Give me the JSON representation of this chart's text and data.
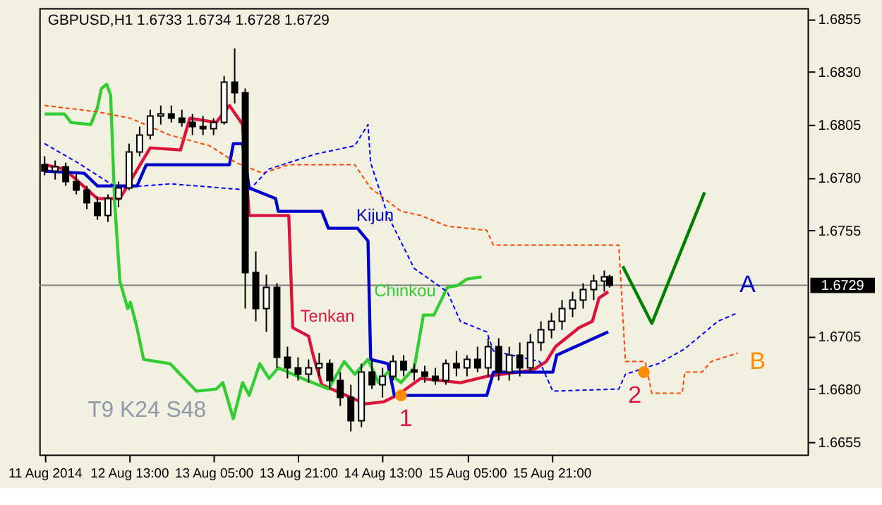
{
  "chart_data": {
    "type": "candlestick",
    "title": "GBPUSD,H1 1.6733 1.6734 1.6728 1.6729",
    "x": [
      "2014-08-11T21:00",
      "2014-08-11T23:00",
      "2014-08-12T01:00",
      "2014-08-12T03:00",
      "2014-08-12T05:00",
      "2014-08-12T07:00",
      "2014-08-12T09:00",
      "2014-08-12T11:00",
      "2014-08-12T13:00",
      "2014-08-12T15:00",
      "2014-08-12T17:00",
      "2014-08-12T19:00",
      "2014-08-12T21:00",
      "2014-08-12T23:00",
      "2014-08-13T01:00",
      "2014-08-13T03:00",
      "2014-08-13T05:00",
      "2014-08-13T07:00",
      "2014-08-13T09:00",
      "2014-08-13T11:00",
      "2014-08-13T13:00",
      "2014-08-13T15:00",
      "2014-08-13T17:00",
      "2014-08-13T19:00",
      "2014-08-13T21:00",
      "2014-08-13T23:00",
      "2014-08-14T01:00",
      "2014-08-14T03:00",
      "2014-08-14T05:00",
      "2014-08-14T07:00",
      "2014-08-14T09:00",
      "2014-08-14T11:00",
      "2014-08-14T13:00",
      "2014-08-14T15:00",
      "2014-08-14T17:00",
      "2014-08-14T19:00",
      "2014-08-14T21:00",
      "2014-08-14T23:00",
      "2014-08-15T01:00",
      "2014-08-15T03:00",
      "2014-08-15T05:00",
      "2014-08-15T07:00",
      "2014-08-15T09:00",
      "2014-08-15T11:00",
      "2014-08-15T13:00",
      "2014-08-15T15:00",
      "2014-08-15T17:00",
      "2014-08-15T19:00",
      "2014-08-15T21:00",
      "2014-08-15T23:00",
      "2014-08-16T01:00",
      "2014-08-16T03:00",
      "2014-08-16T05:00",
      "2014-08-16T07:00",
      "2014-08-16T08:00"
    ],
    "ohlc": [
      [
        1.6786,
        1.679,
        1.6781,
        1.6783
      ],
      [
        1.6783,
        1.6788,
        1.6779,
        1.6785
      ],
      [
        1.6785,
        1.6787,
        1.6776,
        1.6778
      ],
      [
        1.6778,
        1.6782,
        1.6772,
        1.6774
      ],
      [
        1.6774,
        1.6776,
        1.6765,
        1.6768
      ],
      [
        1.6768,
        1.6771,
        1.676,
        1.6762
      ],
      [
        1.6762,
        1.6772,
        1.6759,
        1.677
      ],
      [
        1.677,
        1.6778,
        1.6766,
        1.6775
      ],
      [
        1.6775,
        1.6796,
        1.6774,
        1.6792
      ],
      [
        1.6792,
        1.6804,
        1.679,
        1.68
      ],
      [
        1.68,
        1.6812,
        1.6798,
        1.6809
      ],
      [
        1.6809,
        1.6814,
        1.6805,
        1.681
      ],
      [
        1.681,
        1.6814,
        1.6806,
        1.6808
      ],
      [
        1.6808,
        1.6812,
        1.6804,
        1.6806
      ],
      [
        1.6806,
        1.681,
        1.68,
        1.6804
      ],
      [
        1.6804,
        1.6809,
        1.68,
        1.6803
      ],
      [
        1.6803,
        1.6808,
        1.68,
        1.6806
      ],
      [
        1.6806,
        1.6828,
        1.6805,
        1.6825
      ],
      [
        1.6825,
        1.6841,
        1.6815,
        1.682
      ],
      [
        1.682,
        1.6822,
        1.6718,
        1.6735
      ],
      [
        1.6735,
        1.6745,
        1.6712,
        1.6718
      ],
      [
        1.6718,
        1.6734,
        1.6707,
        1.6728
      ],
      [
        1.6728,
        1.673,
        1.669,
        1.6695
      ],
      [
        1.6695,
        1.67,
        1.6685,
        1.669
      ],
      [
        1.669,
        1.6695,
        1.6684,
        1.6687
      ],
      [
        1.6687,
        1.6694,
        1.6683,
        1.669
      ],
      [
        1.669,
        1.6697,
        1.6686,
        1.6692
      ],
      [
        1.6692,
        1.6694,
        1.668,
        1.6684
      ],
      [
        1.6684,
        1.6688,
        1.6672,
        1.6676
      ],
      [
        1.6676,
        1.6682,
        1.666,
        1.6665
      ],
      [
        1.6665,
        1.6692,
        1.6662,
        1.6688
      ],
      [
        1.6688,
        1.6694,
        1.668,
        1.6682
      ],
      [
        1.6682,
        1.669,
        1.6676,
        1.6686
      ],
      [
        1.6686,
        1.6696,
        1.6684,
        1.6693
      ],
      [
        1.6693,
        1.6696,
        1.6686,
        1.6689
      ],
      [
        1.6689,
        1.6692,
        1.6684,
        1.6688
      ],
      [
        1.6688,
        1.6691,
        1.6683,
        1.6686
      ],
      [
        1.6686,
        1.669,
        1.6682,
        1.6684
      ],
      [
        1.6684,
        1.6694,
        1.6682,
        1.6692
      ],
      [
        1.6692,
        1.6698,
        1.6686,
        1.669
      ],
      [
        1.669,
        1.6696,
        1.6686,
        1.6694
      ],
      [
        1.6694,
        1.67,
        1.6688,
        1.669
      ],
      [
        1.669,
        1.6704,
        1.6686,
        1.67
      ],
      [
        1.67,
        1.6704,
        1.6684,
        1.6688
      ],
      [
        1.6688,
        1.67,
        1.6684,
        1.6696
      ],
      [
        1.6696,
        1.6702,
        1.6686,
        1.669
      ],
      [
        1.669,
        1.6706,
        1.6688,
        1.6702
      ],
      [
        1.6702,
        1.6712,
        1.6698,
        1.6708
      ],
      [
        1.6708,
        1.6716,
        1.6704,
        1.6712
      ],
      [
        1.6712,
        1.6722,
        1.6708,
        1.6718
      ],
      [
        1.6718,
        1.6726,
        1.6714,
        1.6722
      ],
      [
        1.6722,
        1.673,
        1.6718,
        1.6727
      ],
      [
        1.6727,
        1.6734,
        1.6722,
        1.6731
      ],
      [
        1.6731,
        1.6736,
        1.6726,
        1.6733
      ],
      [
        1.6733,
        1.6734,
        1.6728,
        1.6729
      ]
    ],
    "series": [
      {
        "type": "line",
        "color": "#dc143c",
        "line_style": "solid",
        "x": [
          "2014-08-11T21:00",
          "2014-08-12T00:45",
          "2014-08-12T07:00",
          "2014-08-12T11:15",
          "2014-08-12T17:00",
          "2014-08-12T22:45",
          "2014-08-13T00:30",
          "2014-08-13T05:30",
          "2014-08-13T08:00",
          "2014-08-13T10:30",
          "2014-08-13T11:45",
          "2014-08-13T19:15",
          "2014-08-13T20:00",
          "2014-08-13T23:00",
          "2014-08-13T23:45",
          "2014-08-14T01:30",
          "2014-08-14T09:45",
          "2014-08-14T13:15",
          "2014-08-14T15:45",
          "2014-08-14T20:15",
          "2014-08-15T03:45",
          "2014-08-15T08:45",
          "2014-08-15T17:30",
          "2014-08-15T20:00",
          "2014-08-15T21:45",
          "2014-08-16T02:15",
          "2014-08-16T04:45",
          "2014-08-16T06:00",
          "2014-08-16T07:45"
        ],
        "values": [
          1.6786,
          1.6784,
          1.677,
          1.677,
          1.6794,
          1.6793,
          1.6808,
          1.6806,
          1.6814,
          1.6805,
          1.6762,
          1.6762,
          1.6709,
          1.6705,
          1.6697,
          1.6682,
          1.6673,
          1.6674,
          1.6677,
          1.6685,
          1.6683,
          1.6686,
          1.6689,
          1.6693,
          1.67,
          1.6709,
          1.6712,
          1.6723,
          1.6726
        ]
      },
      {
        "type": "line",
        "color": "#0000cd",
        "line_style": "solid",
        "x": [
          "2014-08-11T21:00",
          "2014-08-12T04:30",
          "2014-08-12T07:00",
          "2014-08-12T14:30",
          "2014-08-12T16:15",
          "2014-08-13T08:00",
          "2014-08-13T08:45",
          "2014-08-13T10:30",
          "2014-08-13T11:45",
          "2014-08-13T16:45",
          "2014-08-13T17:15",
          "2014-08-14T01:30",
          "2014-08-14T02:45",
          "2014-08-14T08:15",
          "2014-08-14T10:15",
          "2014-08-14T10:45",
          "2014-08-14T14:00",
          "2014-08-14T15:15",
          "2014-08-15T08:45",
          "2014-08-15T10:00",
          "2014-08-15T21:15",
          "2014-08-15T22:00",
          "2014-08-15T23:45",
          "2014-08-16T07:45"
        ],
        "values": [
          1.6783,
          1.6782,
          1.6776,
          1.6776,
          1.6786,
          1.6786,
          1.6796,
          1.6796,
          1.6775,
          1.677,
          1.6764,
          1.6764,
          1.6756,
          1.6756,
          1.675,
          1.6694,
          1.6692,
          1.6677,
          1.6677,
          1.6688,
          1.6688,
          1.6696,
          1.6698,
          1.6707
        ]
      },
      {
        "type": "line",
        "color": "#32cd32",
        "line_style": "solid",
        "x": [
          "2014-08-11T21:00",
          "2014-08-12T00:45",
          "2014-08-12T02:00",
          "2014-08-12T05:45",
          "2014-08-12T07:00",
          "2014-08-12T07:45",
          "2014-08-12T08:45",
          "2014-08-12T09:30",
          "2014-08-12T10:15",
          "2014-08-12T11:15",
          "2014-08-12T12:45",
          "2014-08-12T13:15",
          "2014-08-12T14:30",
          "2014-08-12T15:45",
          "2014-08-12T20:45",
          "2014-08-13T01:45",
          "2014-08-13T05:30",
          "2014-08-13T06:45",
          "2014-08-13T08:45",
          "2014-08-13T10:30",
          "2014-08-13T11:45",
          "2014-08-13T13:45",
          "2014-08-13T15:30",
          "2014-08-13T17:15",
          "2014-08-13T21:45",
          "2014-08-14T02:45",
          "2014-08-14T05:45",
          "2014-08-14T07:45",
          "2014-08-14T10:15",
          "2014-08-14T12:15",
          "2014-08-14T14:00",
          "2014-08-14T16:30",
          "2014-08-14T19:00",
          "2014-08-14T20:45",
          "2014-08-14T22:45",
          "2014-08-15T01:15",
          "2014-08-15T03:15",
          "2014-08-15T05:00",
          "2014-08-15T07:45"
        ],
        "values": [
          1.681,
          1.681,
          1.6806,
          1.6805,
          1.6813,
          1.6822,
          1.6824,
          1.6819,
          1.6769,
          1.6731,
          1.6718,
          1.6721,
          1.6709,
          1.6694,
          1.6692,
          1.6679,
          1.668,
          1.6683,
          1.6666,
          1.6683,
          1.6677,
          1.6692,
          1.6685,
          1.669,
          1.6685,
          1.668,
          1.6693,
          1.6687,
          1.6694,
          1.6683,
          1.6688,
          1.6683,
          1.669,
          1.6715,
          1.6715,
          1.6728,
          1.6729,
          1.6732,
          1.6733
        ]
      },
      {
        "type": "line",
        "color": "#ff4500",
        "line_style": "dashed",
        "x": [
          "2014-08-11T21:00",
          "2014-08-12T07:00",
          "2014-08-12T13:15",
          "2014-08-12T20:45",
          "2014-08-13T04:15",
          "2014-08-13T09:15",
          "2014-08-13T14:15",
          "2014-08-13T19:15",
          "2014-08-14T07:45",
          "2014-08-14T10:45",
          "2014-08-14T16:30",
          "2014-08-14T20:15",
          "2014-08-15T01:15",
          "2014-08-15T08:45",
          "2014-08-15T10:00",
          "2014-08-16T09:45",
          "2014-08-16T11:00",
          "2014-08-16T14:45",
          "2014-08-16T16:00",
          "2014-08-16T21:45",
          "2014-08-16T22:15",
          "2014-08-17T01:30",
          "2014-08-17T03:15",
          "2014-08-17T08:15"
        ],
        "values": [
          1.6814,
          1.6811,
          1.6808,
          1.68,
          1.6795,
          1.6787,
          1.6782,
          1.6786,
          1.6786,
          1.6775,
          1.6764,
          1.6762,
          1.6757,
          1.6755,
          1.6748,
          1.6748,
          1.6693,
          1.6693,
          1.6678,
          1.6678,
          1.6688,
          1.6688,
          1.6693,
          1.6697
        ]
      },
      {
        "type": "line",
        "color": "#0000ff",
        "line_style": "dashed",
        "x": [
          "2014-08-11T21:00",
          "2014-08-12T03:15",
          "2014-08-12T10:45",
          "2014-08-12T20:45",
          "2014-08-13T11:45",
          "2014-08-13T15:30",
          "2014-08-14T00:15",
          "2014-08-14T07:45",
          "2014-08-14T10:15",
          "2014-08-14T10:45",
          "2014-08-14T14:00",
          "2014-08-14T19:00",
          "2014-08-15T01:15",
          "2014-08-15T03:45",
          "2014-08-15T08:45",
          "2014-08-15T10:00",
          "2014-08-15T18:45",
          "2014-08-15T21:15",
          "2014-08-16T09:45",
          "2014-08-16T11:00",
          "2014-08-16T17:15",
          "2014-08-16T22:15",
          "2014-08-17T04:30",
          "2014-08-17T08:15"
        ],
        "values": [
          1.6796,
          1.6787,
          1.6775,
          1.6777,
          1.6774,
          1.6784,
          1.6791,
          1.6795,
          1.6805,
          1.6787,
          1.6762,
          1.6737,
          1.6726,
          1.6712,
          1.6707,
          1.6698,
          1.6693,
          1.6679,
          1.668,
          1.6687,
          1.6692,
          1.6699,
          1.6712,
          1.6716
        ]
      },
      {
        "type": "line",
        "color": "#008000",
        "line_style": "solid",
        "x": [
          "2014-08-16T10:30",
          "2014-08-16T16:00",
          "2014-08-17T02:00"
        ],
        "values": [
          1.6738,
          1.6711,
          1.6773
        ]
      },
      {
        "type": "scatter",
        "color": "#ff8c00",
        "marker": "circle",
        "x": [
          "2014-08-14T16:30",
          "2014-08-16T14:30"
        ],
        "values": [
          1.6677,
          1.6688
        ]
      }
    ],
    "annotations": [
      "T9 K24 S48",
      "Tenkan",
      "Kijun",
      "Chinkou",
      "1",
      "2",
      "A",
      "B"
    ],
    "ref_lines": [
      {
        "axis": "y",
        "value": 1.6729,
        "label": "1.6729",
        "color": "#808080"
      }
    ],
    "xlim": [
      "2014-08-11T20:00",
      "2014-08-17T21:30"
    ],
    "xticks": [
      {
        "value": "2014-08-11T21:00",
        "label": "11 Aug 2014"
      },
      {
        "value": "2014-08-12T13:00",
        "label": "12 Aug 13:00"
      },
      {
        "value": "2014-08-13T05:00",
        "label": "13 Aug 05:00"
      },
      {
        "value": "2014-08-13T21:00",
        "label": "13 Aug 21:00"
      },
      {
        "value": "2014-08-14T13:00",
        "label": "14 Aug 13:00"
      },
      {
        "value": "2014-08-15T05:00",
        "label": "15 Aug 05:00"
      },
      {
        "value": "2014-08-15T21:00",
        "label": "15 Aug 21:00"
      }
    ],
    "ylim": [
      1.6649,
      1.686
    ],
    "yticks": [
      1.6655,
      {
        "value": 1.668,
        "label": "1.6680"
      },
      1.6705,
      1.6755,
      {
        "value": 1.678,
        "label": "1.6780"
      },
      1.6805,
      {
        "value": 1.683,
        "label": "1.6830"
      },
      1.6855
    ],
    "grid": false
  }
}
